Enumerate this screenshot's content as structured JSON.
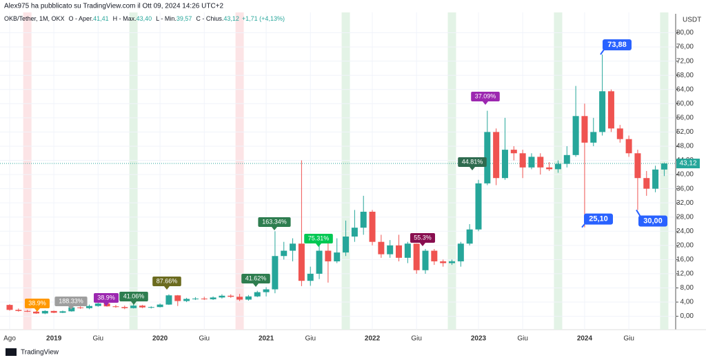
{
  "header": "Alex975 ha pubblicato su TradingView.com il Ott 09, 2024 14:26 UTC+2",
  "footer": "TradingView",
  "chart_data": {
    "type": "candlestick",
    "symbol": "OKB/Tether, 1M, OKX",
    "ohlc_legend": [
      {
        "key": "O - Aper.",
        "value": "41,41"
      },
      {
        "key": "H - Max.",
        "value": "43,40"
      },
      {
        "key": "L - Min.",
        "value": "39,57"
      },
      {
        "key": "C - Chius.",
        "value": "43,12"
      }
    ],
    "change": "+1,71 (+4,13%)",
    "y_unit": "USDT",
    "categories": [
      "Ago",
      null,
      null,
      null,
      null,
      "2019",
      null,
      null,
      null,
      null,
      "Giu",
      null,
      null,
      null,
      null,
      null,
      null,
      "2020",
      null,
      null,
      null,
      null,
      "Giu",
      null,
      null,
      null,
      null,
      null,
      null,
      "2021",
      null,
      null,
      null,
      null,
      "Giu",
      null,
      null,
      null,
      null,
      null,
      null,
      "2022",
      null,
      null,
      null,
      null,
      "Giu",
      null,
      null,
      null,
      null,
      null,
      null,
      "2023",
      null,
      null,
      null,
      null,
      "Giu",
      null,
      null,
      null,
      null,
      null,
      null,
      "2024",
      null,
      null,
      null,
      null,
      "Giu",
      null,
      null,
      null,
      null
    ],
    "up_color": "#26a69a",
    "down_color": "#ef5350",
    "open": [
      3.2,
      1.8,
      1.5,
      1.3,
      0.8,
      1.5,
      1.0,
      1.4,
      2.5,
      2.3,
      2.9,
      3.6,
      2.8,
      2.6,
      2.3,
      3.0,
      2.5,
      2.6,
      3.3,
      5.9,
      4.3,
      4.9,
      5.0,
      4.8,
      5.3,
      5.8,
      5.5,
      4.7,
      5.6,
      6.8,
      7.6,
      17,
      18.5,
      20.5,
      10,
      12,
      18.5,
      15.5,
      18,
      22.5,
      25,
      29.5,
      21,
      17.5,
      20,
      16.5,
      20.5,
      13,
      18.5,
      15.5,
      15,
      15.5,
      20.5,
      24.5,
      37.5,
      52,
      39,
      47,
      46,
      42,
      45,
      42,
      41.5,
      43,
      45.5,
      56.5,
      49,
      52,
      63.5,
      53,
      50,
      46,
      39,
      36,
      41.41
    ],
    "high": [
      3.4,
      2.2,
      1.8,
      1.5,
      1.7,
      1.6,
      1.6,
      2.6,
      2.8,
      3.3,
      3.9,
      3.9,
      3.2,
      3.0,
      3.4,
      3.2,
      2.8,
      3.6,
      6.2,
      6.0,
      5.2,
      5.4,
      5.5,
      5.6,
      6.2,
      6.2,
      6.3,
      6.0,
      7.2,
      8.2,
      24,
      21,
      22,
      44,
      14,
      20,
      21,
      22,
      27,
      30,
      34,
      30,
      23,
      21.5,
      23,
      21,
      20.5,
      19,
      19,
      16,
      16,
      21,
      26,
      38.5,
      58,
      53,
      56,
      48,
      47,
      46,
      46,
      43.5,
      44,
      48,
      65,
      60,
      56,
      73.88,
      64,
      54,
      51,
      47,
      41,
      42.5,
      43.4
    ],
    "low": [
      1.6,
      1.3,
      1.2,
      0.7,
      0.6,
      0.9,
      0.9,
      1.3,
      2.1,
      2.0,
      2.7,
      2.7,
      2.4,
      2.0,
      2.2,
      2.3,
      2.2,
      2.5,
      3.2,
      2.9,
      4.0,
      4.6,
      4.6,
      4.6,
      5.0,
      5.2,
      4.3,
      4.4,
      5.4,
      5.6,
      6.5,
      16,
      15.5,
      8.5,
      8.6,
      10.5,
      9.5,
      15,
      17,
      21,
      23,
      20,
      16.5,
      16.5,
      15.5,
      15,
      12,
      12,
      14.5,
      14,
      14.5,
      14,
      20,
      24,
      37,
      37,
      38.5,
      44,
      39,
      41.5,
      40,
      41,
      40.5,
      42,
      45,
      25.1,
      48,
      51,
      52,
      49,
      45,
      30,
      34,
      35,
      39.57
    ],
    "close": [
      1.8,
      1.5,
      1.3,
      0.8,
      1.5,
      1.0,
      1.4,
      2.5,
      2.3,
      2.9,
      3.6,
      2.8,
      2.6,
      2.3,
      3.0,
      2.5,
      2.6,
      3.3,
      5.9,
      4.3,
      4.9,
      5.0,
      4.8,
      5.3,
      5.8,
      5.5,
      4.7,
      5.6,
      6.8,
      7.6,
      17,
      18.5,
      20.5,
      10,
      12,
      18.5,
      15.5,
      18,
      22.5,
      25,
      29.5,
      21,
      17.5,
      20,
      16.5,
      20.5,
      13,
      18.5,
      15.5,
      15,
      15.5,
      20.5,
      24.5,
      37.5,
      52,
      39,
      47,
      46,
      42,
      45,
      42,
      41.5,
      43,
      45.5,
      56.5,
      49,
      52,
      63.5,
      53,
      50,
      46,
      39,
      36,
      41.41,
      43.12
    ],
    "ylim": [
      -3,
      84
    ],
    "yticks": [
      {
        "value": 0,
        "label": "0,00"
      },
      {
        "value": 4,
        "label": "4,00"
      },
      {
        "value": 8,
        "label": "8,00"
      },
      {
        "value": 12,
        "label": "12,00"
      },
      {
        "value": 16,
        "label": "16,00"
      },
      {
        "value": 20,
        "label": "20,00"
      },
      {
        "value": 24,
        "label": "24,00"
      },
      {
        "value": 28,
        "label": "28,00"
      },
      {
        "value": 32,
        "label": "32,00"
      },
      {
        "value": 36,
        "label": "36,00"
      },
      {
        "value": 40,
        "label": "40,00"
      },
      {
        "value": 44,
        "label": "44,00"
      },
      {
        "value": 48,
        "label": "48,00"
      },
      {
        "value": 52,
        "label": "52,00"
      },
      {
        "value": 56,
        "label": "56,00"
      },
      {
        "value": 60,
        "label": "60,00"
      },
      {
        "value": 64,
        "label": "64,00"
      },
      {
        "value": 68,
        "label": "68,00"
      },
      {
        "value": 72,
        "label": "72,00"
      },
      {
        "value": 76,
        "label": "76,00"
      },
      {
        "value": 80,
        "label": "80,00"
      }
    ],
    "grid": true,
    "last_price": {
      "value": 43.12,
      "label": "43,12"
    },
    "price_labels": [
      {
        "value": 73.88,
        "label": "73,88"
      },
      {
        "value": 25.1,
        "label": "25,10"
      },
      {
        "value": 30,
        "label": "30,00"
      }
    ],
    "annotations": [
      {
        "text": "38.9%",
        "color": "#ff9800"
      },
      {
        "text": "188.33%",
        "color": "#9e9e9e"
      },
      {
        "text": "38.9%",
        "color": "#9c27b0"
      },
      {
        "text": "41.06%",
        "color": "#2e7d4f"
      },
      {
        "text": "87.66%",
        "color": "#6b6b1f"
      },
      {
        "text": "41.62%",
        "color": "#2e7d4f"
      },
      {
        "text": "163.34%",
        "color": "#2e7d4f"
      },
      {
        "text": "75.31%",
        "color": "#00c853"
      },
      {
        "text": "55.3%",
        "color": "#880e4f"
      },
      {
        "text": "44.81%",
        "color": "#2e6b4f"
      },
      {
        "text": "37.09%",
        "color": "#9c27b0"
      }
    ]
  }
}
